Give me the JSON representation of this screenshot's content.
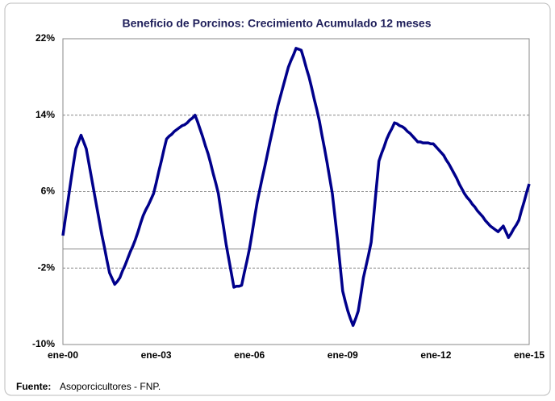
{
  "chart_data": {
    "type": "line",
    "title": "Beneficio de Porcinos: Crecimiento Acumulado 12 meses",
    "source_label": "Fuente:",
    "source": "Asoporcicultores - FNP.",
    "categories": [
      "ene-00",
      null,
      null,
      null,
      null,
      null,
      null,
      null,
      null,
      null,
      null,
      null,
      null,
      null,
      null,
      null,
      null,
      null,
      null,
      null,
      null,
      null,
      null,
      null,
      null,
      null,
      null,
      null,
      null,
      null,
      null,
      null,
      null,
      null,
      null,
      null,
      "ene-03",
      null,
      null,
      null,
      null,
      null,
      null,
      null,
      null,
      null,
      null,
      null,
      null,
      null,
      null,
      null,
      null,
      null,
      null,
      null,
      null,
      null,
      null,
      null,
      null,
      null,
      null,
      null,
      null,
      null,
      null,
      null,
      null,
      null,
      null,
      null,
      "ene-06",
      null,
      null,
      null,
      null,
      null,
      null,
      null,
      null,
      null,
      null,
      null,
      null,
      null,
      null,
      null,
      null,
      null,
      null,
      null,
      null,
      null,
      null,
      null,
      null,
      null,
      null,
      null,
      null,
      null,
      null,
      null,
      null,
      null,
      null,
      null,
      "ene-09",
      null,
      null,
      null,
      null,
      null,
      null,
      null,
      null,
      null,
      null,
      null,
      null,
      null,
      null,
      null,
      null,
      null,
      null,
      null,
      null,
      null,
      null,
      null,
      null,
      null,
      null,
      null,
      null,
      null,
      null,
      null,
      null,
      null,
      null,
      null,
      "ene-12",
      null,
      null,
      null,
      null,
      null,
      null,
      null,
      null,
      null,
      null,
      null,
      null,
      null,
      null,
      null,
      null,
      null,
      null,
      null,
      null,
      null,
      null,
      null,
      null,
      null,
      null,
      null,
      null,
      null,
      null,
      null,
      null,
      null,
      null,
      null,
      "ene-15"
    ],
    "series": [
      {
        "color": "#00008b",
        "values": [
          1.4,
          3.3,
          5.1,
          7.0,
          8.8,
          10.5,
          11.2,
          11.9,
          11.2,
          10.5,
          9.0,
          7.5,
          6.0,
          4.5,
          3.0,
          1.5,
          0.2,
          -1.2,
          -2.5,
          -3.1,
          -3.7,
          -3.4,
          -3.0,
          -2.3,
          -1.7,
          -1.0,
          -0.3,
          0.3,
          1.0,
          1.8,
          2.7,
          3.5,
          4.1,
          4.6,
          5.2,
          5.8,
          6.9,
          8.1,
          9.2,
          10.4,
          11.5,
          11.8,
          12.0,
          12.3,
          12.5,
          12.7,
          12.9,
          13.0,
          13.2,
          13.5,
          13.7,
          14.0,
          13.3,
          12.5,
          11.7,
          10.8,
          10.0,
          9.0,
          7.9,
          6.9,
          5.8,
          4.0,
          2.3,
          0.5,
          -1.0,
          -2.5,
          -4.0,
          -3.9,
          -3.9,
          -3.8,
          -2.5,
          -1.3,
          0.0,
          1.6,
          3.3,
          4.9,
          6.2,
          7.5,
          8.7,
          10.0,
          11.3,
          12.5,
          13.8,
          15.0,
          16.0,
          17.0,
          18.0,
          19.0,
          19.7,
          20.3,
          21.0,
          20.9,
          20.8,
          19.9,
          18.9,
          18.0,
          16.9,
          15.7,
          14.6,
          13.4,
          11.9,
          10.5,
          9.0,
          7.4,
          5.8,
          3.4,
          1.0,
          -1.7,
          -4.4,
          -5.5,
          -6.5,
          -7.3,
          -8.0,
          -7.3,
          -6.5,
          -4.8,
          -3.0,
          -1.8,
          -0.6,
          0.7,
          3.5,
          6.4,
          9.2,
          10.0,
          10.7,
          11.5,
          12.1,
          12.6,
          13.2,
          13.1,
          12.9,
          12.8,
          12.6,
          12.3,
          12.1,
          11.8,
          11.5,
          11.2,
          11.2,
          11.1,
          11.1,
          11.1,
          11.0,
          11.0,
          10.7,
          10.4,
          10.1,
          9.8,
          9.3,
          8.9,
          8.4,
          7.9,
          7.4,
          6.8,
          6.3,
          5.8,
          5.4,
          5.1,
          4.7,
          4.4,
          4.0,
          3.7,
          3.4,
          3.0,
          2.7,
          2.4,
          2.2,
          2.0,
          1.8,
          2.1,
          2.4,
          1.8,
          1.2,
          1.6,
          2.1,
          2.5,
          3.0,
          4.0,
          4.9,
          5.9,
          6.8
        ]
      }
    ],
    "ylim": [
      -10,
      22
    ],
    "yticks": [
      {
        "value": -10,
        "label": "-10%"
      },
      {
        "value": -2,
        "label": "-2%"
      },
      {
        "value": 6,
        "label": "6%"
      },
      {
        "value": 14,
        "label": "14%"
      },
      {
        "value": 22,
        "label": "22%"
      }
    ],
    "grid": true
  }
}
